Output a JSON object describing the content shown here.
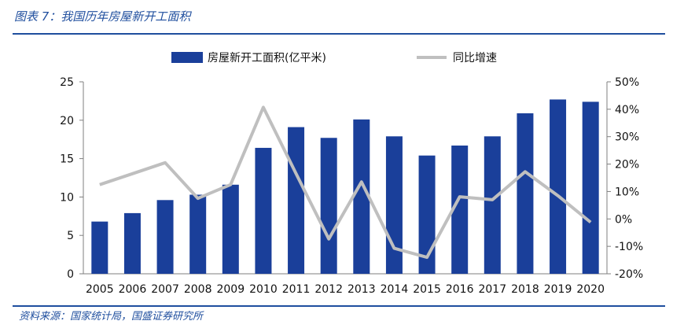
{
  "header": {
    "title": "图表 7：我国历年房屋新开工面积"
  },
  "footer": {
    "source": "资料来源：国家统计局，国盛证券研究所"
  },
  "chart_data": {
    "type": "bar",
    "categories": [
      "2005",
      "2006",
      "2007",
      "2008",
      "2009",
      "2010",
      "2011",
      "2012",
      "2013",
      "2014",
      "2015",
      "2016",
      "2017",
      "2018",
      "2019",
      "2020"
    ],
    "series": [
      {
        "name": "房屋新开工面积(亿平米)",
        "type": "bar",
        "axis": "left",
        "color": "#1a3f9a",
        "values": [
          6.8,
          7.9,
          9.6,
          10.3,
          11.6,
          16.4,
          19.1,
          17.7,
          20.1,
          17.9,
          15.4,
          16.7,
          17.9,
          20.9,
          22.7,
          22.4
        ]
      },
      {
        "name": "同比增速",
        "type": "line",
        "axis": "right",
        "color": "#bfbfbf",
        "values": [
          12.5,
          16.5,
          20.5,
          7.5,
          12.5,
          40.7,
          16.5,
          -7.3,
          13.5,
          -10.7,
          -14.0,
          8.1,
          7.0,
          17.2,
          8.5,
          -1.2
        ]
      }
    ],
    "yleft": {
      "ylim": [
        0,
        25
      ],
      "ticks": [
        "0",
        "5",
        "10",
        "15",
        "20",
        "25"
      ]
    },
    "yright": {
      "ylim": [
        -20,
        50
      ],
      "ticks": [
        "-20%",
        "-10%",
        "0%",
        "10%",
        "20%",
        "30%",
        "40%",
        "50%"
      ]
    },
    "legend": "top-center",
    "grid": false
  }
}
